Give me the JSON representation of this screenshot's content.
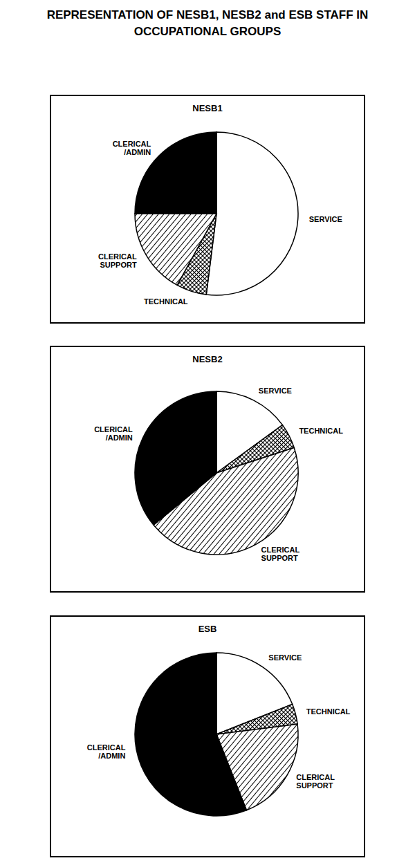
{
  "title": "REPRESENTATION OF NESB1, NESB2 and ESB STAFF IN OCCUPATIONAL GROUPS",
  "chart_data": [
    {
      "type": "pie",
      "title": "NESB1",
      "categories": [
        "SERVICE",
        "TECHNICAL",
        "CLERICAL SUPPORT",
        "CLERICAL /ADMIN"
      ],
      "values": [
        52,
        6,
        17,
        25
      ],
      "colors": [
        "#ffffff",
        "#000000",
        "#000000",
        "#000000"
      ]
    },
    {
      "type": "pie",
      "title": "NESB2",
      "categories": [
        "SERVICE",
        "TECHNICAL",
        "CLERICAL SUPPORT",
        "CLERICAL /ADMIN"
      ],
      "values": [
        15,
        5,
        44,
        36
      ],
      "colors": [
        "#ffffff",
        "#000000",
        "#000000",
        "#000000"
      ]
    },
    {
      "type": "pie",
      "title": "ESB",
      "categories": [
        "SERVICE",
        "TECHNICAL",
        "CLERICAL SUPPORT",
        "CLERICAL /ADMIN"
      ],
      "values": [
        19,
        4,
        21,
        56
      ],
      "colors": [
        "#ffffff",
        "#000000",
        "#000000",
        "#000000"
      ]
    }
  ]
}
